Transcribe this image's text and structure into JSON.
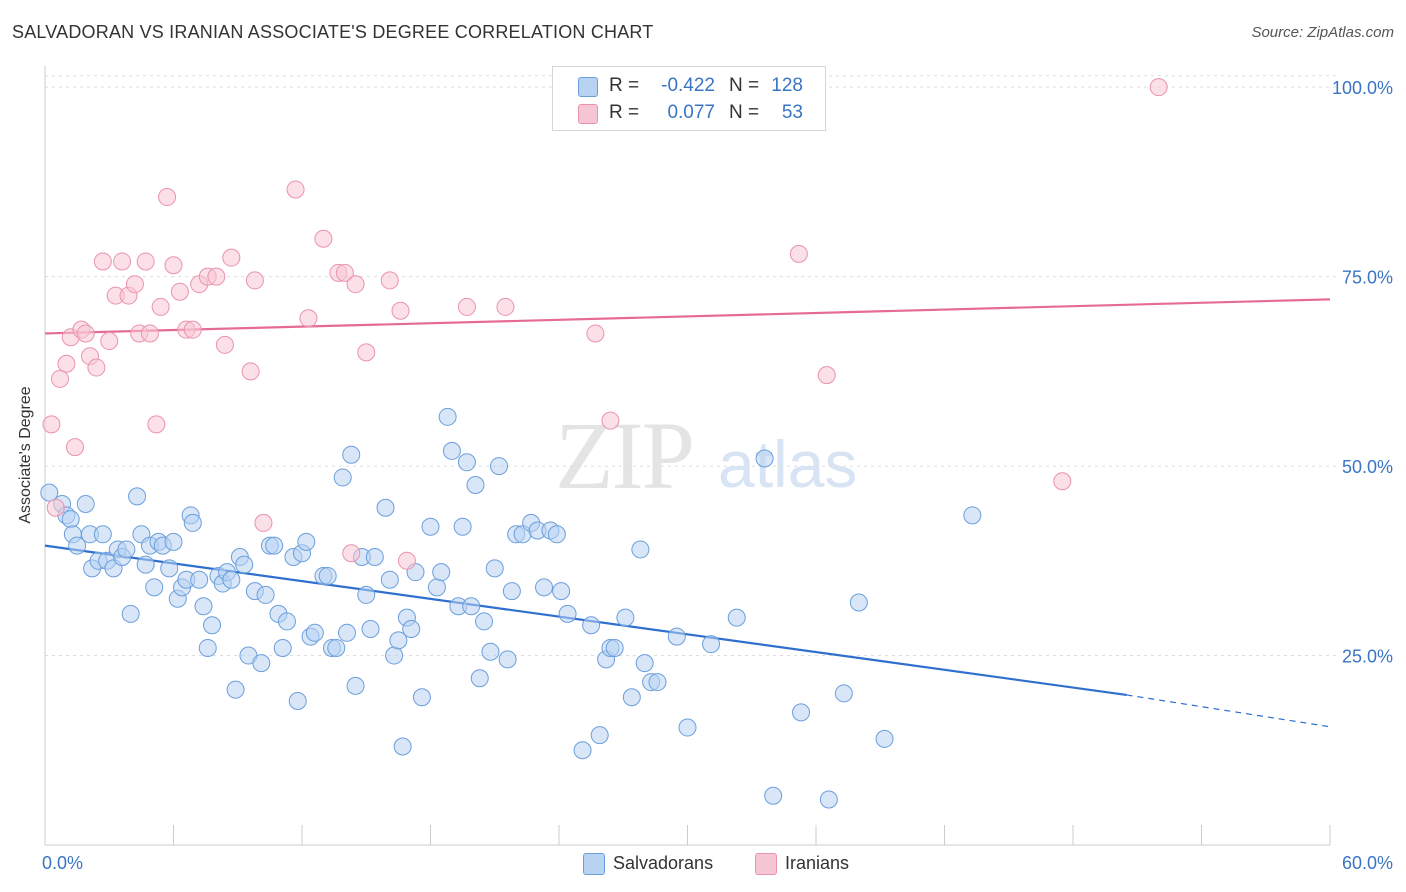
{
  "header": {
    "title": "SALVADORAN VS IRANIAN ASSOCIATE'S DEGREE CORRELATION CHART",
    "source": "Source: ZipAtlas.com"
  },
  "watermark": {
    "zip": "ZIP",
    "atlas": "atlas"
  },
  "legend_top": {
    "rows": [
      {
        "r_label": "R =",
        "r_value": "-0.422",
        "n_label": "N =",
        "n_value": "128"
      },
      {
        "r_label": "R =",
        "r_value": "0.077",
        "n_label": "N =",
        "n_value": "53"
      }
    ]
  },
  "legend_bottom": {
    "items": [
      "Salvadorans",
      "Iranians"
    ]
  },
  "colors": {
    "blue_fill": "#b8d2f2",
    "blue_stroke": "#6b9fdc",
    "blue_line": "#2f6fce",
    "pink_fill": "#f7c6d4",
    "pink_stroke": "#ea93ad",
    "pink_line": "#e56b96",
    "tick_label": "#3a75c4"
  },
  "chart_data": {
    "type": "scatter",
    "title": "SALVADORAN VS IRANIAN ASSOCIATE'S DEGREE CORRELATION CHART",
    "xlabel": "",
    "ylabel": "Associate's Degree",
    "xlim": [
      0,
      60
    ],
    "ylim": [
      0,
      102
    ],
    "x_tick_labels": [
      "0.0%",
      "60.0%"
    ],
    "y_ticks": [
      25,
      50,
      75,
      100
    ],
    "y_tick_labels": [
      "25.0%",
      "50.0%",
      "75.0%",
      "100.0%"
    ],
    "grid": "dashed horizontal",
    "legend_position": "top-center",
    "series": [
      {
        "name": "Salvadorans",
        "r": -0.422,
        "n": 128,
        "trend": {
          "x0": 0,
          "y0": 39.5,
          "x1": 50.5,
          "y1": 19.8,
          "dashed_to_x": 60,
          "dashed_to_y": 15.6
        },
        "points": [
          [
            0.2,
            46.5
          ],
          [
            0.8,
            45
          ],
          [
            1.0,
            43.5
          ],
          [
            1.2,
            43
          ],
          [
            1.3,
            41
          ],
          [
            1.5,
            39.5
          ],
          [
            1.9,
            45
          ],
          [
            2.1,
            41
          ],
          [
            2.2,
            36.5
          ],
          [
            2.5,
            37.5
          ],
          [
            2.7,
            41
          ],
          [
            2.9,
            37.5
          ],
          [
            3.2,
            36.5
          ],
          [
            3.4,
            39
          ],
          [
            3.6,
            38
          ],
          [
            3.8,
            39
          ],
          [
            4.0,
            30.5
          ],
          [
            4.3,
            46
          ],
          [
            4.5,
            41
          ],
          [
            4.7,
            37
          ],
          [
            4.9,
            39.5
          ],
          [
            5.1,
            34
          ],
          [
            5.3,
            40
          ],
          [
            5.5,
            39.5
          ],
          [
            5.8,
            36.5
          ],
          [
            6.0,
            40
          ],
          [
            6.2,
            32.5
          ],
          [
            6.4,
            34
          ],
          [
            6.6,
            35
          ],
          [
            6.8,
            43.5
          ],
          [
            6.9,
            42.5
          ],
          [
            7.2,
            35
          ],
          [
            7.4,
            31.5
          ],
          [
            7.6,
            26
          ],
          [
            7.8,
            29
          ],
          [
            8.1,
            35.5
          ],
          [
            8.3,
            34.5
          ],
          [
            8.5,
            36
          ],
          [
            8.7,
            35
          ],
          [
            8.9,
            20.5
          ],
          [
            9.1,
            38
          ],
          [
            9.3,
            37
          ],
          [
            9.5,
            25
          ],
          [
            9.8,
            33.5
          ],
          [
            10.1,
            24
          ],
          [
            10.3,
            33
          ],
          [
            10.5,
            39.5
          ],
          [
            10.7,
            39.5
          ],
          [
            10.9,
            30.5
          ],
          [
            11.1,
            26
          ],
          [
            11.3,
            29.5
          ],
          [
            11.6,
            38
          ],
          [
            11.8,
            19
          ],
          [
            12.0,
            38.5
          ],
          [
            12.2,
            40
          ],
          [
            12.4,
            27.5
          ],
          [
            12.6,
            28
          ],
          [
            13.0,
            35.5
          ],
          [
            13.2,
            35.5
          ],
          [
            13.4,
            26
          ],
          [
            13.6,
            26
          ],
          [
            13.9,
            48.5
          ],
          [
            14.1,
            28
          ],
          [
            14.3,
            51.5
          ],
          [
            14.5,
            21
          ],
          [
            14.8,
            38
          ],
          [
            15.0,
            33
          ],
          [
            15.2,
            28.5
          ],
          [
            15.4,
            38
          ],
          [
            15.9,
            44.5
          ],
          [
            16.1,
            35
          ],
          [
            16.3,
            25
          ],
          [
            16.5,
            27
          ],
          [
            16.7,
            13
          ],
          [
            16.9,
            30
          ],
          [
            17.1,
            28.5
          ],
          [
            17.3,
            36
          ],
          [
            17.6,
            19.5
          ],
          [
            18.0,
            42
          ],
          [
            18.3,
            34
          ],
          [
            18.5,
            36
          ],
          [
            18.8,
            56.5
          ],
          [
            19.0,
            52
          ],
          [
            19.3,
            31.5
          ],
          [
            19.5,
            42
          ],
          [
            19.7,
            50.5
          ],
          [
            19.9,
            31.5
          ],
          [
            20.1,
            47.5
          ],
          [
            20.3,
            22
          ],
          [
            20.5,
            29.5
          ],
          [
            20.8,
            25.5
          ],
          [
            21.0,
            36.5
          ],
          [
            21.2,
            50
          ],
          [
            21.6,
            24.5
          ],
          [
            21.8,
            33.5
          ],
          [
            22.0,
            41
          ],
          [
            22.3,
            41
          ],
          [
            22.7,
            42.5
          ],
          [
            23.0,
            41.5
          ],
          [
            23.3,
            34
          ],
          [
            23.6,
            41.5
          ],
          [
            23.9,
            41
          ],
          [
            24.1,
            33.5
          ],
          [
            24.4,
            30.5
          ],
          [
            25.1,
            12.5
          ],
          [
            25.5,
            29
          ],
          [
            25.9,
            14.5
          ],
          [
            26.2,
            24.5
          ],
          [
            26.4,
            26
          ],
          [
            26.6,
            26
          ],
          [
            27.1,
            30
          ],
          [
            27.4,
            19.5
          ],
          [
            27.8,
            39
          ],
          [
            28.0,
            24
          ],
          [
            28.3,
            21.5
          ],
          [
            28.6,
            21.5
          ],
          [
            29.5,
            27.5
          ],
          [
            30.0,
            15.5
          ],
          [
            31.1,
            26.5
          ],
          [
            32.3,
            30
          ],
          [
            33.6,
            51
          ],
          [
            34.0,
            6.5
          ],
          [
            35.3,
            17.5
          ],
          [
            36.6,
            6
          ],
          [
            37.3,
            20
          ],
          [
            38.0,
            32
          ],
          [
            39.2,
            14
          ],
          [
            43.3,
            43.5
          ]
        ]
      },
      {
        "name": "Iranians",
        "r": 0.077,
        "n": 53,
        "trend": {
          "x0": 0,
          "y0": 67.5,
          "x1": 60,
          "y1": 72.0
        },
        "points": [
          [
            0.3,
            55.5
          ],
          [
            0.5,
            44.5
          ],
          [
            0.7,
            61.5
          ],
          [
            1.0,
            63.5
          ],
          [
            1.2,
            67
          ],
          [
            1.4,
            52.5
          ],
          [
            1.7,
            68
          ],
          [
            1.9,
            67.5
          ],
          [
            2.1,
            64.5
          ],
          [
            2.4,
            63
          ],
          [
            2.7,
            77
          ],
          [
            3.0,
            66.5
          ],
          [
            3.3,
            72.5
          ],
          [
            3.6,
            77
          ],
          [
            3.9,
            72.5
          ],
          [
            4.2,
            74
          ],
          [
            4.4,
            67.5
          ],
          [
            4.7,
            77
          ],
          [
            4.9,
            67.5
          ],
          [
            5.2,
            55.5
          ],
          [
            5.4,
            71
          ],
          [
            5.7,
            85.5
          ],
          [
            6.0,
            76.5
          ],
          [
            6.3,
            73
          ],
          [
            6.6,
            68
          ],
          [
            6.9,
            68
          ],
          [
            7.2,
            74
          ],
          [
            7.6,
            75
          ],
          [
            8.0,
            75
          ],
          [
            8.4,
            66
          ],
          [
            8.7,
            77.5
          ],
          [
            9.6,
            62.5
          ],
          [
            9.8,
            74.5
          ],
          [
            10.2,
            42.5
          ],
          [
            11.7,
            86.5
          ],
          [
            12.3,
            69.5
          ],
          [
            13.0,
            80
          ],
          [
            13.7,
            75.5
          ],
          [
            14.0,
            75.5
          ],
          [
            14.3,
            38.5
          ],
          [
            14.5,
            74
          ],
          [
            15.0,
            65
          ],
          [
            16.1,
            74.5
          ],
          [
            16.6,
            70.5
          ],
          [
            16.9,
            37.5
          ],
          [
            19.7,
            71
          ],
          [
            21.5,
            71
          ],
          [
            25.7,
            67.5
          ],
          [
            26.4,
            56
          ],
          [
            35.2,
            78
          ],
          [
            36.5,
            62
          ],
          [
            47.5,
            48
          ],
          [
            52.0,
            100
          ]
        ]
      }
    ]
  }
}
